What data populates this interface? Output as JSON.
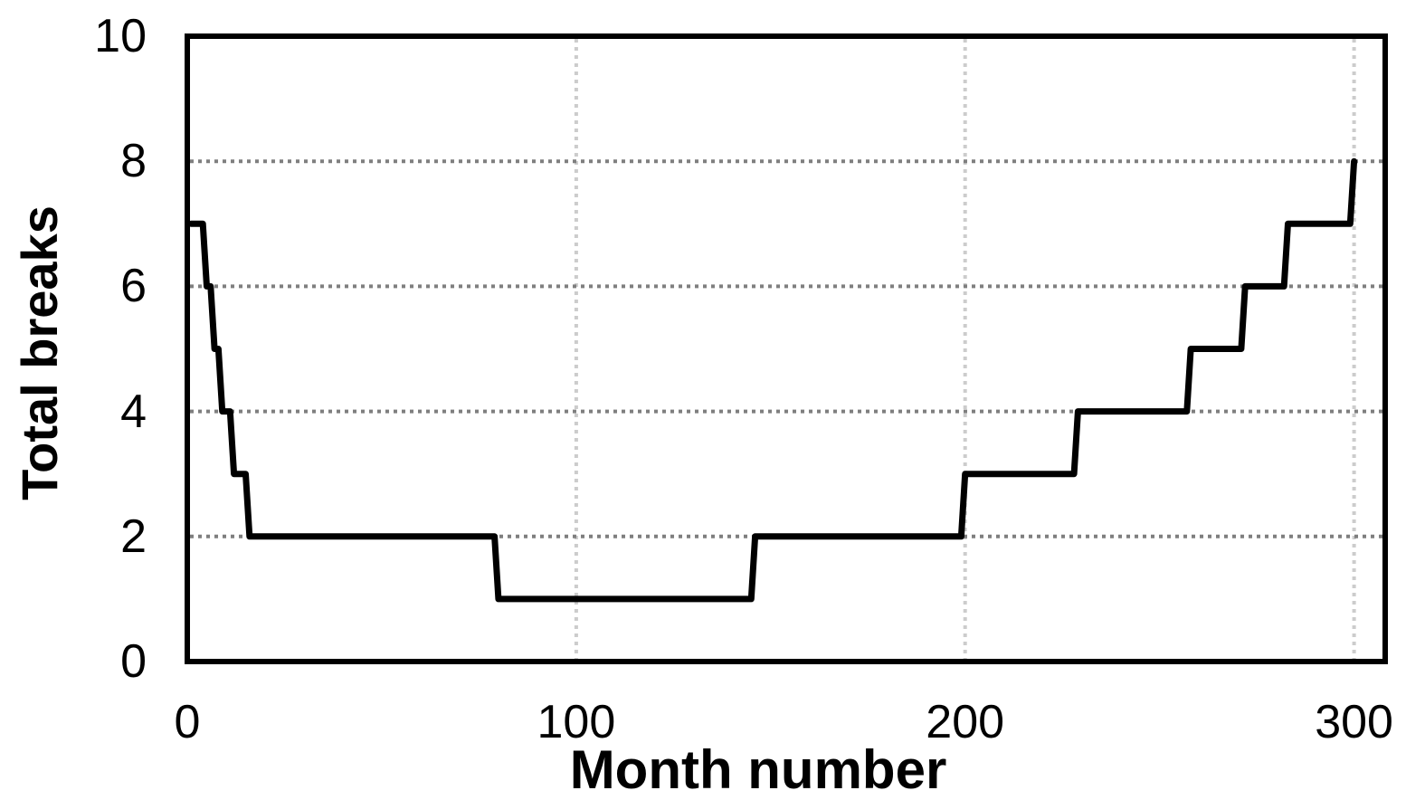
{
  "chart_data": {
    "type": "line",
    "title": "",
    "xlabel": "Month number",
    "ylabel": "Total breaks",
    "x_ticks": [
      {
        "label": "0",
        "value": 0
      },
      {
        "label": "100",
        "value": 100
      },
      {
        "label": "200",
        "value": 200
      },
      {
        "label": "300",
        "value": 300
      }
    ],
    "y_ticks": [
      {
        "label": "0",
        "value": 0
      },
      {
        "label": "2",
        "value": 2
      },
      {
        "label": "4",
        "value": 4
      },
      {
        "label": "6",
        "value": 6
      },
      {
        "label": "8",
        "value": 8
      },
      {
        "label": "10",
        "value": 10
      }
    ],
    "xlim": [
      0,
      308
    ],
    "ylim": [
      0,
      10
    ],
    "grid": {
      "horizontal_at": [
        2,
        4,
        6,
        8
      ],
      "vertical_at": [
        100,
        200,
        300
      ],
      "style": "dotted",
      "horizontal_color": "#7f7f7f",
      "vertical_color": "#cccccc"
    },
    "legend": "none",
    "border_color": "#000000",
    "background_color": "#ffffff",
    "series": [
      {
        "name": "Total breaks",
        "color": "#000000",
        "line_width": 7,
        "segments": [
          {
            "from_month": 1,
            "to_month": 4,
            "value": 7
          },
          {
            "from_month": 5,
            "to_month": 6,
            "value": 6
          },
          {
            "from_month": 7,
            "to_month": 8,
            "value": 5
          },
          {
            "from_month": 9,
            "to_month": 11,
            "value": 4
          },
          {
            "from_month": 12,
            "to_month": 15,
            "value": 3
          },
          {
            "from_month": 16,
            "to_month": 79,
            "value": 2
          },
          {
            "from_month": 80,
            "to_month": 145,
            "value": 1
          },
          {
            "from_month": 146,
            "to_month": 199,
            "value": 2
          },
          {
            "from_month": 200,
            "to_month": 228,
            "value": 3
          },
          {
            "from_month": 229,
            "to_month": 257,
            "value": 4
          },
          {
            "from_month": 258,
            "to_month": 271,
            "value": 5
          },
          {
            "from_month": 272,
            "to_month": 282,
            "value": 6
          },
          {
            "from_month": 283,
            "to_month": 299,
            "value": 7
          },
          {
            "from_month": 300,
            "to_month": 300,
            "value": 8
          }
        ]
      }
    ]
  }
}
